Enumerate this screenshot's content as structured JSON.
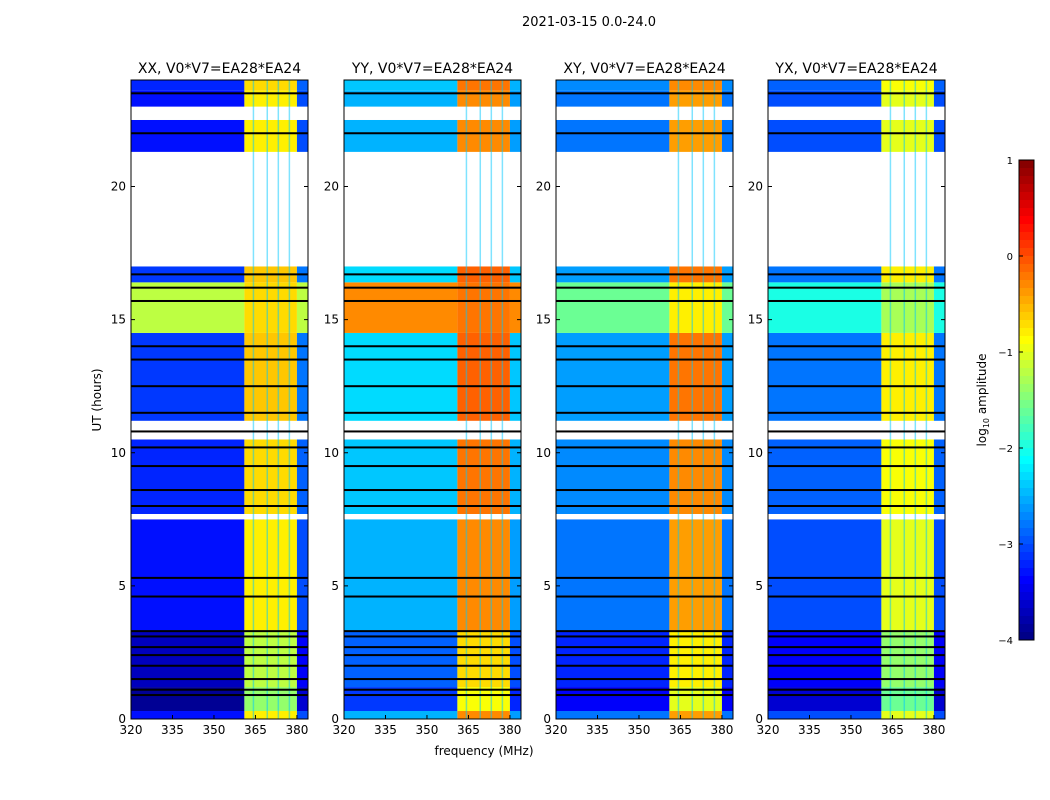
{
  "chart_data": {
    "type": "heatmap",
    "title": "2021-03-15 0.0-24.0",
    "xlabel": "frequency (MHz)",
    "ylabel": "UT (hours)",
    "xlim": [
      320,
      384
    ],
    "ylim": [
      0,
      24
    ],
    "xticks": [
      320,
      335,
      350,
      365,
      380
    ],
    "yticks": [
      0,
      5,
      10,
      15,
      20
    ],
    "freq_bands": [
      [
        320,
        361
      ],
      [
        361,
        380
      ],
      [
        380,
        384
      ]
    ],
    "colorbar": {
      "label": "log10 amplitude",
      "label_main": "log",
      "label_sub": "10",
      "label_rest": " amplitude",
      "range": [
        -4,
        1
      ],
      "ticks": [
        1,
        0,
        -1,
        -2,
        -3,
        -4
      ],
      "colormap": "jet"
    },
    "time_segments": [
      {
        "t": [
          0,
          0.3
        ],
        "state": "data",
        "mod": 0
      },
      {
        "t": [
          0.3,
          1.2
        ],
        "state": "data",
        "mod": -0.6
      },
      {
        "t": [
          1.2,
          3.3
        ],
        "state": "data",
        "mod": -0.4
      },
      {
        "t": [
          3.3,
          7.5
        ],
        "state": "data",
        "mod": 0
      },
      {
        "t": [
          7.5,
          7.7
        ],
        "state": "flagged"
      },
      {
        "t": [
          7.7,
          10.5
        ],
        "state": "data",
        "mod": 0.1
      },
      {
        "t": [
          10.5,
          11.2
        ],
        "state": "flagged"
      },
      {
        "t": [
          11.2,
          14.5
        ],
        "state": "data",
        "mod": 0.2
      },
      {
        "t": [
          14.5,
          16.4
        ],
        "state": "bright"
      },
      {
        "t": [
          16.4,
          17.0
        ],
        "state": "data",
        "mod": 0.2
      },
      {
        "t": [
          17.0,
          21.3
        ],
        "state": "flagged"
      },
      {
        "t": [
          21.3,
          22.5
        ],
        "state": "data",
        "mod": 0
      },
      {
        "t": [
          22.5,
          23.0
        ],
        "state": "flagged"
      },
      {
        "t": [
          23.0,
          23.6
        ],
        "state": "data",
        "mod": 0
      },
      {
        "t": [
          23.6,
          24.0
        ],
        "state": "data",
        "mod": 0.1
      }
    ],
    "blank_lines_hours": [
      0.9,
      1.1,
      1.5,
      2.0,
      2.4,
      2.7,
      3.1,
      3.3,
      4.6,
      5.3,
      8.0,
      8.6,
      9.5,
      10.2,
      10.8,
      11.5,
      12.5,
      13.5,
      14.0,
      15.7,
      16.2,
      16.7,
      22.0,
      23.5
    ],
    "panels": [
      {
        "title": "XX, V0*V7=EA28*EA24",
        "values": {
          "data": [
            -3.3,
            -0.8,
            -3.0
          ],
          "bright": [
            -1.2,
            -0.7,
            -1.2
          ]
        }
      },
      {
        "title": "YY, V0*V7=EA28*EA24",
        "values": {
          "data": [
            -2.5,
            -0.3,
            -2.6
          ],
          "bright": [
            -0.3,
            -0.2,
            -0.3
          ]
        }
      },
      {
        "title": "XY, V0*V7=EA28*EA24",
        "values": {
          "data": [
            -2.8,
            -0.4,
            -2.8
          ],
          "bright": [
            -1.6,
            -0.8,
            -1.6
          ]
        }
      },
      {
        "title": "YX, V0*V7=EA28*EA24",
        "values": {
          "data": [
            -3.0,
            -1.0,
            -3.0
          ],
          "bright": [
            -2.0,
            -1.3,
            -2.0
          ]
        }
      }
    ]
  }
}
